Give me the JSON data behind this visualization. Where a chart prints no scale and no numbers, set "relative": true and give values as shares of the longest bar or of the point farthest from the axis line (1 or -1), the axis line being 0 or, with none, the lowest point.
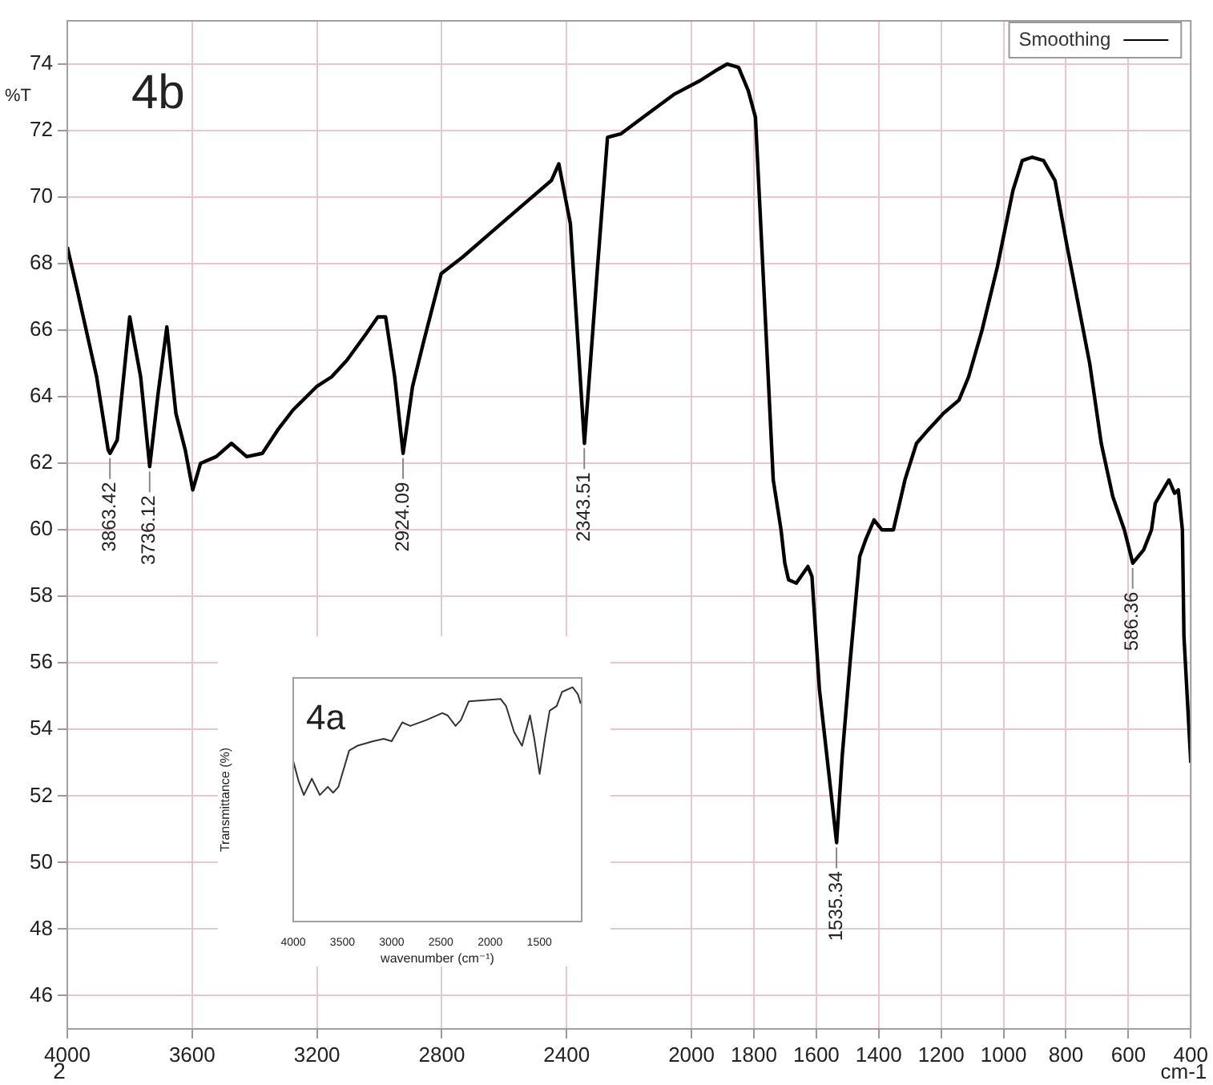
{
  "chart_data": [
    {
      "type": "line",
      "xlabel": "cm-1",
      "ylabel": "%T",
      "xlim": [
        4000,
        400
      ],
      "xticks": [
        4000,
        3600,
        3200,
        2800,
        2400,
        2000,
        1800,
        1600,
        1400,
        1200,
        1000,
        800,
        600,
        400
      ],
      "ylim": [
        45,
        75.3
      ],
      "yticks": [
        46,
        48,
        50,
        52,
        54,
        56,
        58,
        60,
        62,
        64,
        66,
        68,
        70,
        72,
        74
      ],
      "grid": true,
      "legend": "top right",
      "marker": "none",
      "series": [
        {
          "name": "Smoothing",
          "color": "#000000",
          "x": [
            4000,
            3968,
            3906,
            3869,
            3863,
            3840,
            3800,
            3765,
            3736,
            3709,
            3681,
            3652,
            3622,
            3598,
            3573,
            3523,
            3474,
            3425,
            3375,
            3326,
            3277,
            3202,
            3153,
            3104,
            3042,
            3005,
            2980,
            2951,
            2924,
            2894,
            2857,
            2802,
            2733,
            2635,
            2536,
            2449,
            2425,
            2388,
            2343,
            2301,
            2269,
            2227,
            2141,
            2054,
            1973,
            1923,
            1886,
            1849,
            1818,
            1795,
            1763,
            1738,
            1713,
            1701,
            1689,
            1664,
            1627,
            1614,
            1590,
            1535,
            1517,
            1492,
            1461,
            1442,
            1415,
            1390,
            1353,
            1316,
            1279,
            1242,
            1193,
            1143,
            1112,
            1069,
            1020,
            970,
            940,
            909,
            872,
            835,
            798,
            761,
            724,
            687,
            650,
            613,
            586,
            551,
            526,
            514,
            489,
            470,
            452,
            440,
            427,
            422,
            400
          ],
          "values": [
            68.5,
            67.2,
            64.6,
            62.4,
            62.3,
            62.7,
            66.4,
            64.6,
            61.9,
            64.1,
            66.1,
            63.5,
            62.4,
            61.2,
            62.0,
            62.2,
            62.6,
            62.2,
            62.3,
            63.0,
            63.6,
            64.3,
            64.6,
            65.1,
            65.9,
            66.4,
            66.4,
            64.6,
            62.3,
            64.3,
            65.7,
            67.7,
            68.2,
            69.0,
            69.8,
            70.5,
            71.0,
            69.2,
            62.6,
            67.9,
            71.8,
            71.9,
            72.5,
            73.1,
            73.5,
            73.8,
            74.0,
            73.9,
            73.2,
            72.4,
            66.3,
            61.5,
            60.0,
            59.0,
            58.5,
            58.4,
            58.9,
            58.6,
            55.2,
            50.6,
            53.2,
            56.0,
            59.2,
            59.7,
            60.3,
            60.0,
            60.0,
            61.5,
            62.6,
            63.0,
            63.5,
            63.9,
            64.6,
            66.0,
            67.9,
            70.2,
            71.1,
            71.2,
            71.1,
            70.5,
            68.6,
            66.8,
            65.0,
            62.6,
            61.0,
            60.0,
            59.0,
            59.4,
            60.0,
            60.8,
            61.2,
            61.5,
            61.1,
            61.2,
            60.0,
            56.8,
            53.0
          ]
        }
      ],
      "annotations": [
        "4b",
        "2",
        {
          "text": "3863.42",
          "x": 3863.42,
          "y": 62.3
        },
        {
          "text": "3736.12",
          "x": 3736.12,
          "y": 61.9
        },
        {
          "text": "2924.09",
          "x": 2924.09,
          "y": 62.3
        },
        {
          "text": "2343.51",
          "x": 2343.51,
          "y": 62.6
        },
        {
          "text": "1535.34",
          "x": 1535.34,
          "y": 50.6
        },
        {
          "text": "586.36",
          "x": 586.36,
          "y": 59.0
        }
      ]
    },
    {
      "type": "line",
      "relative": true,
      "xlabel": "wavenumber (cm⁻¹)",
      "ylabel": "Transmittance (%)",
      "xlim": [
        4000,
        1070
      ],
      "xticks": [
        4000,
        3500,
        3000,
        2500,
        2000,
        1500
      ],
      "tick_labels": "x",
      "marker": "none",
      "series": [
        {
          "color": "#333333",
          "x": [
            4000,
            3946,
            3892,
            3811,
            3730,
            3649,
            3595,
            3541,
            3432,
            3351,
            3189,
            3081,
            3000,
            2892,
            2811,
            2649,
            2486,
            2432,
            2351,
            2297,
            2216,
            2054,
            1892,
            1838,
            1757,
            1676,
            1595,
            1551,
            1497,
            1443,
            1395,
            1324,
            1270,
            1162,
            1108,
            1080
          ],
          "values": [
            0.685,
            0.6,
            0.54,
            0.61,
            0.54,
            0.575,
            0.55,
            0.575,
            0.73,
            0.75,
            0.77,
            0.78,
            0.77,
            0.85,
            0.835,
            0.86,
            0.89,
            0.88,
            0.835,
            0.86,
            0.94,
            0.945,
            0.95,
            0.92,
            0.81,
            0.75,
            0.88,
            0.78,
            0.63,
            0.78,
            0.9,
            0.92,
            0.98,
            1.0,
            0.97,
            0.93
          ]
        }
      ],
      "annotations": [
        "4a"
      ]
    }
  ]
}
